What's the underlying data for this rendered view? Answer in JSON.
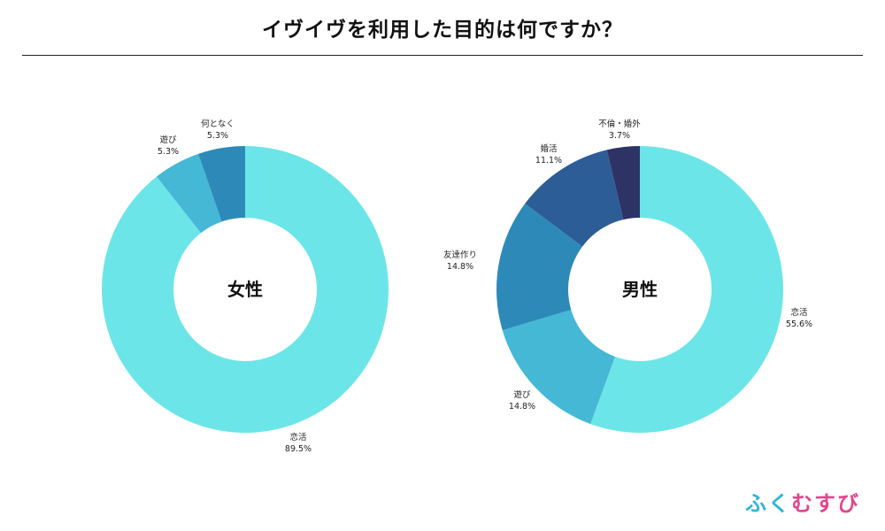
{
  "title": "イヴイヴを利用した目的は何ですか？",
  "logo": {
    "chars": [
      "ふ",
      "く",
      "む",
      "す",
      "び"
    ],
    "colors": [
      "#2fb5d6",
      "#2fb5d6",
      "#e0458d",
      "#e0458d",
      "#e0458d"
    ]
  },
  "chart_data": [
    {
      "type": "pie",
      "subtype": "donut",
      "center_label": "女性",
      "slices": [
        {
          "label": "恋活",
          "value": 89.5,
          "display": "89.5%",
          "color": "#6ce5e8"
        },
        {
          "label": "遊び",
          "value": 5.3,
          "display": "5.3%",
          "color": "#45b8d6"
        },
        {
          "label": "何となく",
          "value": 5.3,
          "display": "5.3%",
          "color": "#2d8ab8"
        }
      ]
    },
    {
      "type": "pie",
      "subtype": "donut",
      "center_label": "男性",
      "slices": [
        {
          "label": "恋活",
          "value": 55.6,
          "display": "55.6%",
          "color": "#6ce5e8"
        },
        {
          "label": "遊び",
          "value": 14.8,
          "display": "14.8%",
          "color": "#45b8d6"
        },
        {
          "label": "友達作り",
          "value": 14.8,
          "display": "14.8%",
          "color": "#2d8ab8"
        },
        {
          "label": "婚活",
          "value": 11.1,
          "display": "11.1%",
          "color": "#2d5d96"
        },
        {
          "label": "不倫・婚外",
          "value": 3.7,
          "display": "3.7%",
          "color": "#2e3366"
        }
      ]
    }
  ]
}
